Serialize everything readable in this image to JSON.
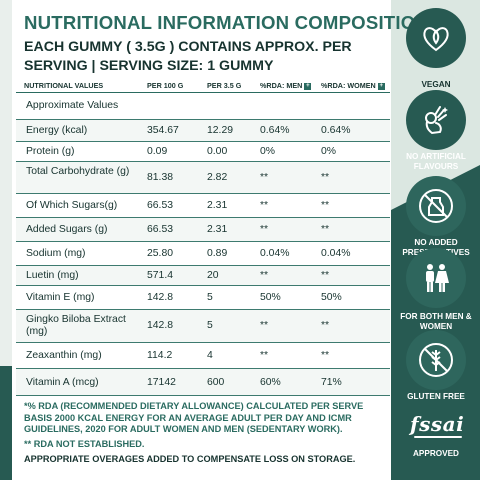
{
  "title": "NUTRITIONAL INFORMATION COMPOSITION",
  "subtitle_line1": "EACH GUMMY ( 3.5G ) CONTAINS APPROX. PER",
  "subtitle_line2": "SERVING | SERVING SIZE: 1 GUMMY",
  "headers": {
    "col0": "NUTRITIONAL VALUES",
    "col1": "PER 100 G",
    "col2": "PER 3.5 G",
    "col3": "%RDA: MEN",
    "col4": "%RDA: WOMEN",
    "plus_glyph": "+"
  },
  "rows": [
    {
      "name": "Approximate Values",
      "per100": "",
      "per35": "",
      "men": "",
      "women": ""
    },
    {
      "name": "Energy (kcal)",
      "per100": "354.67",
      "per35": "12.29",
      "men": "0.64%",
      "women": "0.64%"
    },
    {
      "name": "Protein (g)",
      "per100": "0.09",
      "per35": "0.00",
      "men": "0%",
      "women": "0%"
    },
    {
      "name": "Total Carbohydrate (g)",
      "per100": "81.38",
      "per35": "2.82",
      "men": "**",
      "women": "**"
    },
    {
      "name": "Of Which Sugars(g)",
      "per100": "66.53",
      "per35": "2.31",
      "men": "**",
      "women": "**"
    },
    {
      "name": "Added Sugars (g)",
      "per100": "66.53",
      "per35": "2.31",
      "men": "**",
      "women": "**"
    },
    {
      "name": "Sodium (mg)",
      "per100": "25.80",
      "per35": "0.89",
      "men": "0.04%",
      "women": "0.04%"
    },
    {
      "name": "Luetin (mg)",
      "per100": "571.4",
      "per35": "20",
      "men": "**",
      "women": "**"
    },
    {
      "name": "Vitamin E (mg)",
      "per100": "142.8",
      "per35": "5",
      "men": "50%",
      "women": "50%"
    },
    {
      "name": "Gingko Biloba Extract (mg)",
      "per100": "142.8",
      "per35": "5",
      "men": "**",
      "women": "**"
    },
    {
      "name": "Zeaxanthin (mg)",
      "per100": "114.2",
      "per35": "4",
      "men": "**",
      "women": "**"
    },
    {
      "name": "Vitamin A (mcg)",
      "per100": "17142",
      "per35": "600",
      "men": "60%",
      "women": "71%"
    }
  ],
  "notes": {
    "rda": "*% RDA (RECOMMENDED DIETARY ALLOWANCE) CALCULATED PER SERVE BASIS 2000 KCAL ENERGY FOR AN AVERAGE ADULT PER DAY AND ICMR GUIDELINES, 2020 FOR ADULT WOMEN AND MEN (SEDENTARY WORK).",
    "not_established": "** RDA NOT ESTABLISHED.",
    "overages": "APPROPRIATE OVERAGES ADDED TO COMPENSATE LOSS ON STORAGE."
  },
  "badges": [
    {
      "label": "VEGAN",
      "icon": "heart-leaf-icon"
    },
    {
      "label": "NO ARTIFICIAL FLAVOURS",
      "icon": "ok-hand-icon"
    },
    {
      "label": "NO ADDED PRESERVATIVES",
      "icon": "no-jar-icon"
    },
    {
      "label": "FOR BOTH MEN & WOMEN",
      "icon": "man-woman-icon"
    },
    {
      "label": "GLUTEN FREE",
      "icon": "no-wheat-icon"
    },
    {
      "label": "APPROVED",
      "logo_text": "fssai"
    }
  ],
  "colors": {
    "accent": "#2a6b60",
    "dark_panel": "#275a52",
    "light_panel": "#dbe7e1",
    "text": "#17332f"
  }
}
